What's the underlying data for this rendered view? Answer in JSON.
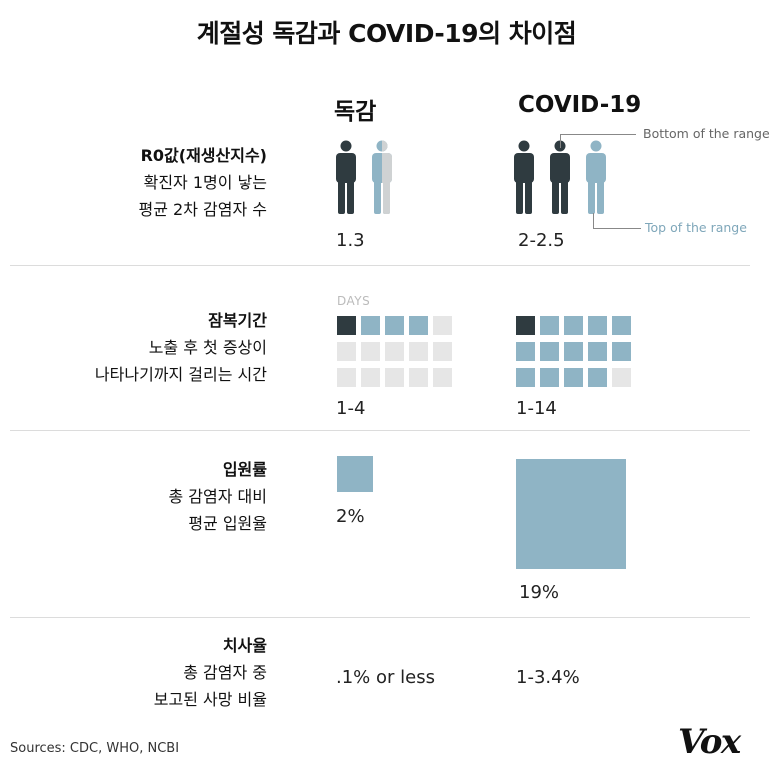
{
  "title": "계절성 독감과 COVID-19의 차이점",
  "columns": {
    "flu": "독감",
    "covid": "COVID-19"
  },
  "rows": [
    {
      "label": "R0값(재생산지수)",
      "sub1": "확진자 1명이 낳는",
      "sub2": "평균 2차 감염자 수",
      "flu": "1.3",
      "covid": "2-2.5"
    },
    {
      "label": "잠복기간",
      "sub1": "노출 후 첫 증상이",
      "sub2": "나타나기까지 걸리는 시간",
      "flu": "1-4",
      "covid": "1-14"
    },
    {
      "label": "입원률",
      "sub1": "총 감염자 대비",
      "sub2": "평균 입원율",
      "flu": "2%",
      "covid": "19%"
    },
    {
      "label": "치사율",
      "sub1": "총 감염자 중",
      "sub2": "보고된 사망 비율",
      "flu": ".1% or less",
      "covid": "1-3.4%"
    }
  ],
  "annotations": {
    "bottom": "Bottom of the range",
    "top": "Top of the range",
    "days": "DAYS"
  },
  "sources": "Sources: CDC, WHO,  NCBI",
  "brand": "Vox",
  "colors": {
    "dark": "#2f3b40",
    "blue": "#8fb4c5",
    "gray": "#cfd2d3",
    "empty": "#e6e6e6"
  },
  "chart_data": {
    "type": "table",
    "title": "계절성 독감과 COVID-19의 차이점",
    "columns": [
      "독감",
      "COVID-19"
    ],
    "r0": {
      "flu": 1.3,
      "covid_min": 2,
      "covid_max": 2.5
    },
    "incubation_days": {
      "flu_min": 1,
      "flu_max": 4,
      "covid_min": 1,
      "covid_max": 14,
      "grid_size": 15
    },
    "hospitalization_pct": {
      "flu": 2,
      "covid": 19
    },
    "fatality_pct": {
      "flu": "0.1 or less",
      "covid_min": 1,
      "covid_max": 3.4
    }
  }
}
